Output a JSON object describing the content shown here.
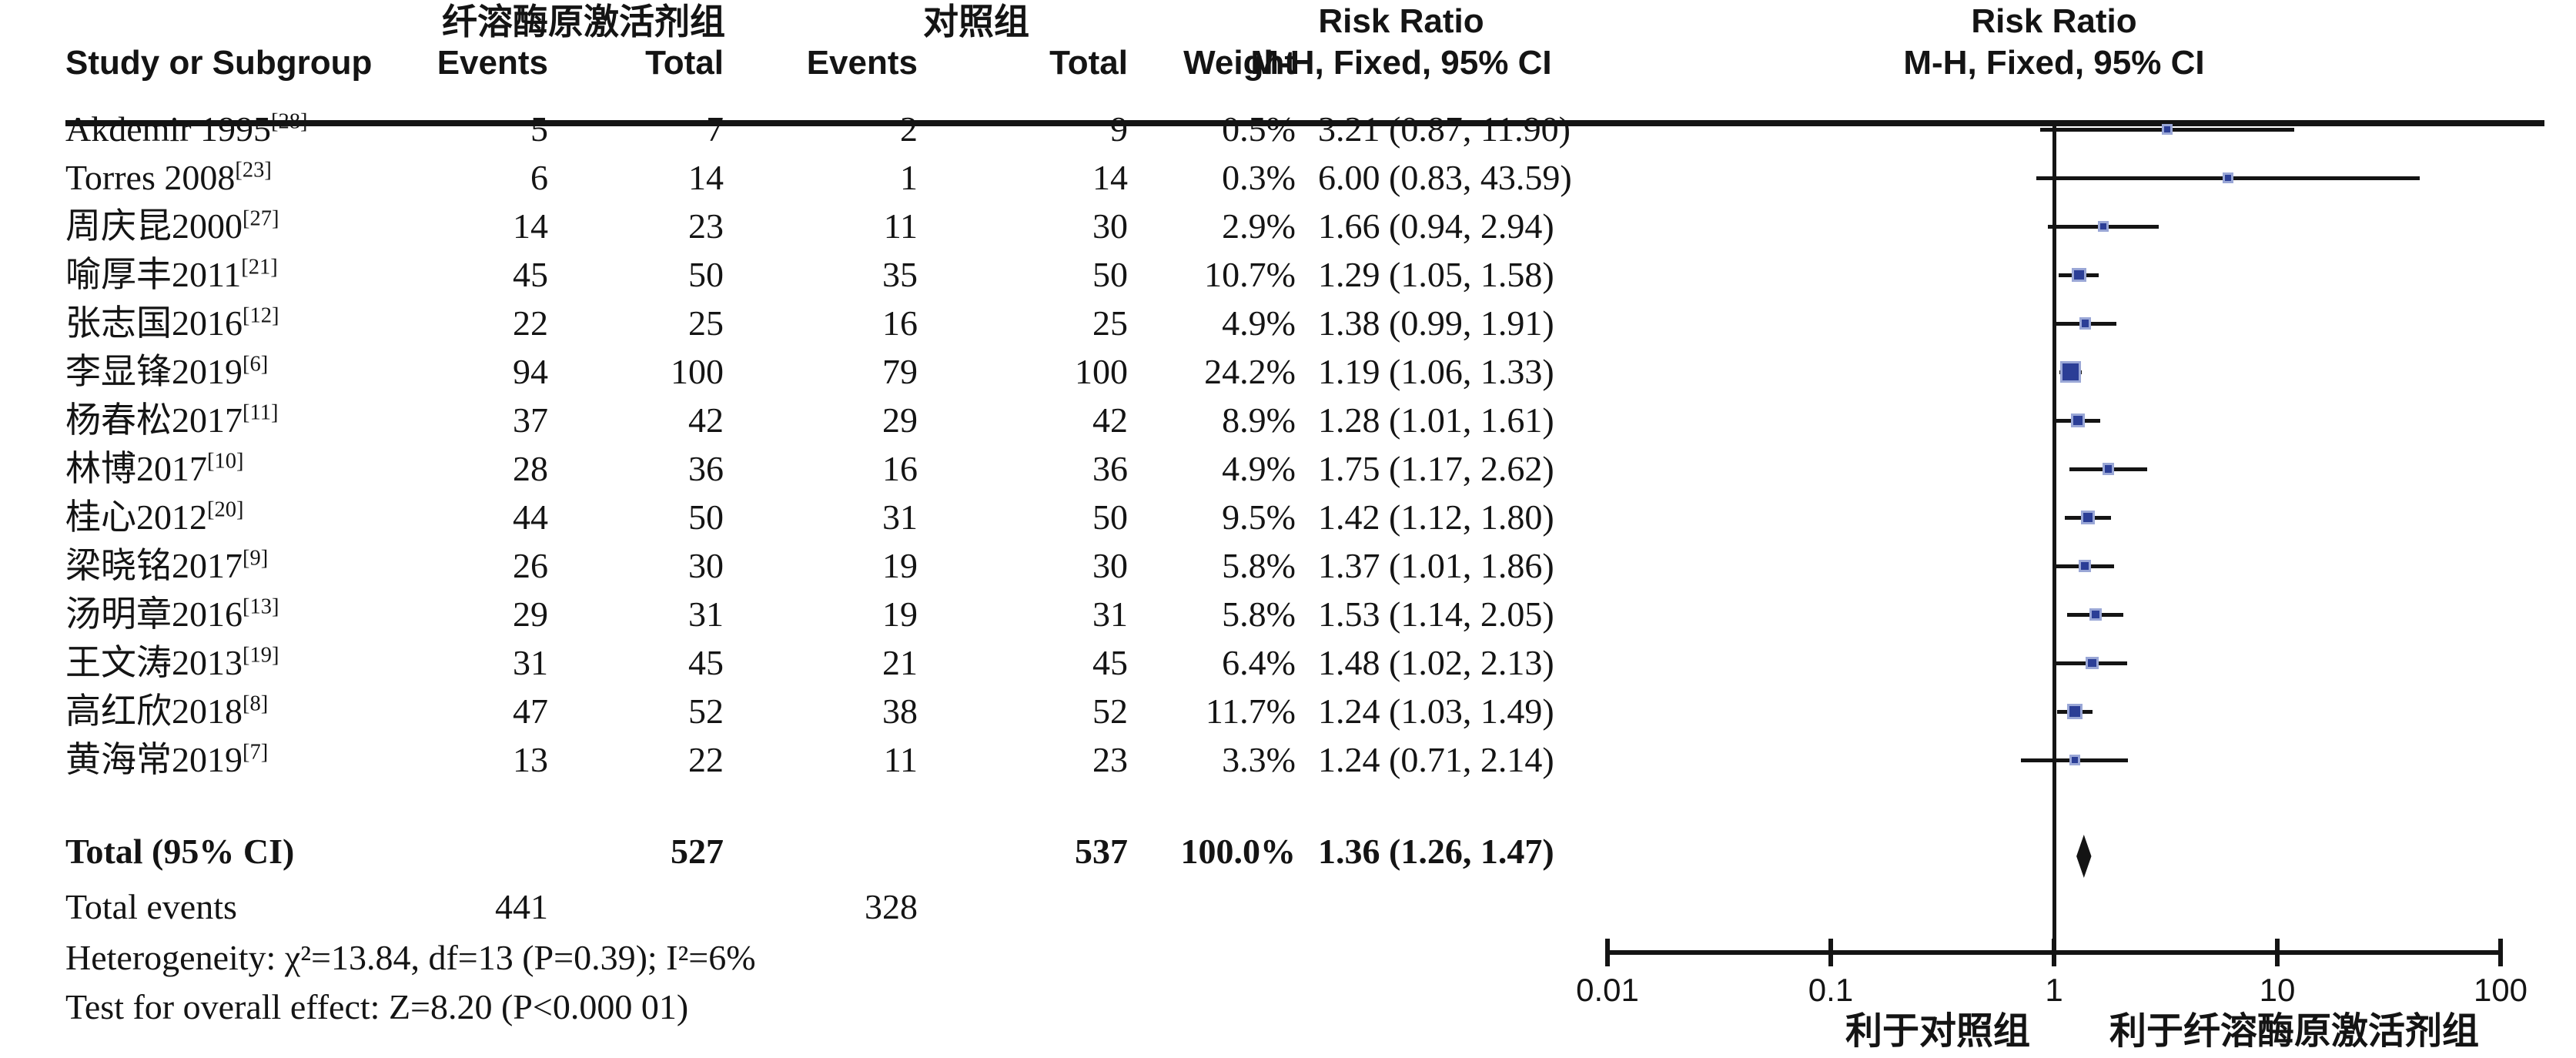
{
  "header": {
    "study_col": "Study or Subgroup",
    "group1_title": "纤溶酶原激活剂组",
    "group2_title": "对照组",
    "events_col1": "Events",
    "total_col1": "Total",
    "events_col2": "Events",
    "total_col2": "Total",
    "weight_col": "Weight",
    "rr_title": "Risk Ratio",
    "rr_subtitle": "M-H, Fixed, 95% CI",
    "plot_title": "Risk Ratio",
    "plot_subtitle": "M-H, Fixed, 95% CI"
  },
  "studies": [
    {
      "name": "Akdemir 1995",
      "ref": "[28]",
      "events1": "5",
      "total1": "7",
      "events2": "2",
      "total2": "9",
      "weight": "0.5%",
      "rr_ci": "3.21 (0.87, 11.90)"
    },
    {
      "name": "Torres 2008",
      "ref": "[23]",
      "events1": "6",
      "total1": "14",
      "events2": "1",
      "total2": "14",
      "weight": "0.3%",
      "rr_ci": "6.00 (0.83, 43.59)"
    },
    {
      "name": "周庆昆2000",
      "ref": "[27]",
      "events1": "14",
      "total1": "23",
      "events2": "11",
      "total2": "30",
      "weight": "2.9%",
      "rr_ci": "1.66 (0.94, 2.94)"
    },
    {
      "name": "喻厚丰2011",
      "ref": "[21]",
      "events1": "45",
      "total1": "50",
      "events2": "35",
      "total2": "50",
      "weight": "10.7%",
      "rr_ci": "1.29 (1.05, 1.58)"
    },
    {
      "name": "张志国2016",
      "ref": "[12]",
      "events1": "22",
      "total1": "25",
      "events2": "16",
      "total2": "25",
      "weight": "4.9%",
      "rr_ci": "1.38 (0.99, 1.91)"
    },
    {
      "name": "李显锋2019",
      "ref": "[6]",
      "events1": "94",
      "total1": "100",
      "events2": "79",
      "total2": "100",
      "weight": "24.2%",
      "rr_ci": "1.19 (1.06, 1.33)"
    },
    {
      "name": "杨春松2017",
      "ref": "[11]",
      "events1": "37",
      "total1": "42",
      "events2": "29",
      "total2": "42",
      "weight": "8.9%",
      "rr_ci": "1.28 (1.01, 1.61)"
    },
    {
      "name": "林博2017",
      "ref": "[10]",
      "events1": "28",
      "total1": "36",
      "events2": "16",
      "total2": "36",
      "weight": "4.9%",
      "rr_ci": "1.75 (1.17, 2.62)"
    },
    {
      "name": "桂心2012",
      "ref": "[20]",
      "events1": "44",
      "total1": "50",
      "events2": "31",
      "total2": "50",
      "weight": "9.5%",
      "rr_ci": "1.42 (1.12, 1.80)"
    },
    {
      "name": "梁晓铭2017",
      "ref": "[9]",
      "events1": "26",
      "total1": "30",
      "events2": "19",
      "total2": "30",
      "weight": "5.8%",
      "rr_ci": "1.37 (1.01, 1.86)"
    },
    {
      "name": "汤明章2016",
      "ref": "[13]",
      "events1": "29",
      "total1": "31",
      "events2": "19",
      "total2": "31",
      "weight": "5.8%",
      "rr_ci": "1.53 (1.14, 2.05)"
    },
    {
      "name": "王文涛2013",
      "ref": "[19]",
      "events1": "31",
      "total1": "45",
      "events2": "21",
      "total2": "45",
      "weight": "6.4%",
      "rr_ci": "1.48 (1.02, 2.13)"
    },
    {
      "name": "高红欣2018",
      "ref": "[8]",
      "events1": "47",
      "total1": "52",
      "events2": "38",
      "total2": "52",
      "weight": "11.7%",
      "rr_ci": "1.24 (1.03, 1.49)"
    },
    {
      "name": "黄海常2019",
      "ref": "[7]",
      "events1": "13",
      "total1": "22",
      "events2": "11",
      "total2": "23",
      "weight": "3.3%",
      "rr_ci": "1.24 (0.71, 2.14)"
    }
  ],
  "totals": {
    "label": "Total (95% CI)",
    "total1": "527",
    "total2": "537",
    "weight": "100.0%",
    "rr_ci": "1.36 (1.26, 1.47)",
    "events_label": "Total events",
    "events1": "441",
    "events2": "328",
    "heterogeneity": "Heterogeneity: χ²=13.84, df=13 (P=0.39); I²=6%",
    "overall_effect": "Test for overall effect: Z=8.20 (P<0.000 01)"
  },
  "chart_data": {
    "type": "forest",
    "effect_measure": "Risk Ratio, M-H, Fixed, 95% CI",
    "x_scale": "log10",
    "xlim": [
      0.01,
      100
    ],
    "axis_ticks": [
      0.01,
      0.1,
      1,
      10,
      100
    ],
    "tick_labels": [
      "0.01",
      "0.1",
      "1",
      "10",
      "100"
    ],
    "null_line": 1,
    "favours_left": "利于对照组",
    "favours_right": "利于纤溶酶原激活剂组",
    "marker_color": "#2b3e96",
    "marker_halo_color": "#9aa7d6",
    "line_color": "#141414",
    "studies": [
      {
        "label": "Akdemir 1995[28]",
        "rr": 3.21,
        "lo": 0.87,
        "hi": 11.9,
        "weight_pct": 0.5
      },
      {
        "label": "Torres 2008[23]",
        "rr": 6.0,
        "lo": 0.83,
        "hi": 43.59,
        "weight_pct": 0.3
      },
      {
        "label": "周庆昆2000[27]",
        "rr": 1.66,
        "lo": 0.94,
        "hi": 2.94,
        "weight_pct": 2.9
      },
      {
        "label": "喻厚丰2011[21]",
        "rr": 1.29,
        "lo": 1.05,
        "hi": 1.58,
        "weight_pct": 10.7
      },
      {
        "label": "张志国2016[12]",
        "rr": 1.38,
        "lo": 0.99,
        "hi": 1.91,
        "weight_pct": 4.9
      },
      {
        "label": "李显锋2019[6]",
        "rr": 1.19,
        "lo": 1.06,
        "hi": 1.33,
        "weight_pct": 24.2
      },
      {
        "label": "杨春松2017[11]",
        "rr": 1.28,
        "lo": 1.01,
        "hi": 1.61,
        "weight_pct": 8.9
      },
      {
        "label": "林博2017[10]",
        "rr": 1.75,
        "lo": 1.17,
        "hi": 2.62,
        "weight_pct": 4.9
      },
      {
        "label": "桂心2012[20]",
        "rr": 1.42,
        "lo": 1.12,
        "hi": 1.8,
        "weight_pct": 9.5
      },
      {
        "label": "梁晓铭2017[9]",
        "rr": 1.37,
        "lo": 1.01,
        "hi": 1.86,
        "weight_pct": 5.8
      },
      {
        "label": "汤明章2016[13]",
        "rr": 1.53,
        "lo": 1.14,
        "hi": 2.05,
        "weight_pct": 5.8
      },
      {
        "label": "王文涛2013[19]",
        "rr": 1.48,
        "lo": 1.02,
        "hi": 2.13,
        "weight_pct": 6.4
      },
      {
        "label": "高红欣2018[8]",
        "rr": 1.24,
        "lo": 1.03,
        "hi": 1.49,
        "weight_pct": 11.7
      },
      {
        "label": "黄海常2019[7]",
        "rr": 1.24,
        "lo": 0.71,
        "hi": 2.14,
        "weight_pct": 3.3
      }
    ],
    "total": {
      "label": "Total (95% CI)",
      "rr": 1.36,
      "lo": 1.26,
      "hi": 1.47,
      "weight_pct": 100.0
    }
  }
}
